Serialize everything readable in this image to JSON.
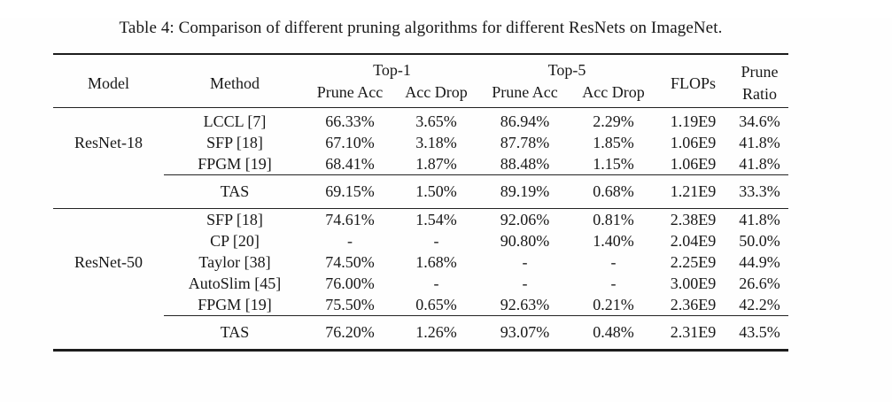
{
  "title": "Table 4: Comparison of different pruning algorithms for different ResNets on ImageNet.",
  "table": {
    "header": {
      "model": "Model",
      "method": "Method",
      "top1": "Top-1",
      "top5": "Top-5",
      "flops": "FLOPs",
      "prune_ratio_line1": "Prune",
      "prune_ratio_line2": "Ratio",
      "prune_acc": "Prune Acc",
      "acc_drop": "Acc Drop"
    },
    "sections": [
      {
        "model": "ResNet-18",
        "rows": [
          {
            "method": "LCCL [7]",
            "t1_prune": "66.33%",
            "t1_drop": "3.65%",
            "t5_prune": "86.94%",
            "t5_drop": "2.29%",
            "flops": "1.19E9",
            "ratio": "34.6%"
          },
          {
            "method": "SFP [18]",
            "t1_prune": "67.10%",
            "t1_drop": "3.18%",
            "t5_prune": "87.78%",
            "t5_drop": "1.85%",
            "flops": "1.06E9",
            "ratio": "41.8%"
          },
          {
            "method": "FPGM [19]",
            "t1_prune": "68.41%",
            "t1_drop": "1.87%",
            "t5_prune": "88.48%",
            "t5_drop": "1.15%",
            "flops": "1.06E9",
            "ratio": "41.8%"
          }
        ],
        "tas_row": {
          "method": "TAS",
          "t1_prune": "69.15%",
          "t1_drop": "1.50%",
          "t5_prune": "89.19%",
          "t5_drop": "0.68%",
          "flops": "1.21E9",
          "ratio": "33.3%"
        }
      },
      {
        "model": "ResNet-50",
        "rows": [
          {
            "method": "SFP [18]",
            "t1_prune": "74.61%",
            "t1_drop": "1.54%",
            "t5_prune": "92.06%",
            "t5_drop": "0.81%",
            "flops": "2.38E9",
            "ratio": "41.8%"
          },
          {
            "method": "CP [20]",
            "t1_prune": "-",
            "t1_drop": "-",
            "t5_prune": "90.80%",
            "t5_drop": "1.40%",
            "flops": "2.04E9",
            "ratio": "50.0%"
          },
          {
            "method": "Taylor [38]",
            "t1_prune": "74.50%",
            "t1_drop": "1.68%",
            "t5_prune": "-",
            "t5_drop": "-",
            "flops": "2.25E9",
            "ratio": "44.9%"
          },
          {
            "method": "AutoSlim [45]",
            "t1_prune": "76.00%",
            "t1_drop": "-",
            "t5_prune": "-",
            "t5_drop": "-",
            "flops": "3.00E9",
            "ratio": "26.6%"
          },
          {
            "method": "FPGM [19]",
            "t1_prune": "75.50%",
            "t1_drop": "0.65%",
            "t5_prune": "92.63%",
            "t5_drop": "0.21%",
            "flops": "2.36E9",
            "ratio": "42.2%"
          }
        ],
        "tas_row": {
          "method": "TAS",
          "t1_prune": "76.20%",
          "t1_drop": "1.26%",
          "t5_prune": "93.07%",
          "t5_drop": "0.48%",
          "flops": "2.31E9",
          "ratio": "43.5%"
        }
      }
    ]
  }
}
